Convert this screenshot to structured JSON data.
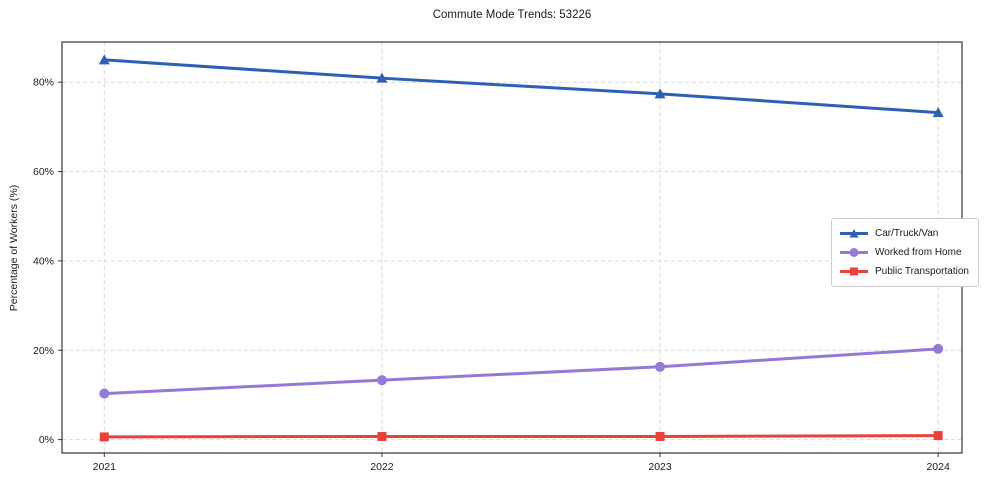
{
  "chart_data": {
    "type": "line",
    "title": "Commute Mode Trends: 53226",
    "xlabel": "",
    "ylabel": "Percentage of Workers (%)",
    "categories": [
      "2021",
      "2022",
      "2023",
      "2024"
    ],
    "series": [
      {
        "name": "Car/Truck/Van",
        "color": "#2d5fb4",
        "marker": "triangle",
        "values": [
          85.0,
          80.9,
          77.4,
          73.2
        ]
      },
      {
        "name": "Worked from Home",
        "color": "#9678d7",
        "marker": "circle",
        "values": [
          10.3,
          13.3,
          16.3,
          20.3
        ]
      },
      {
        "name": "Public Transportation",
        "color": "#e8413c",
        "marker": "square",
        "values": [
          0.6,
          0.7,
          0.7,
          0.9
        ]
      }
    ],
    "yticks": {
      "values": [
        0,
        20,
        40,
        60,
        80
      ],
      "labels": [
        "0%",
        "20%",
        "40%",
        "60%",
        "80%"
      ]
    },
    "ylim": [
      -3,
      89
    ],
    "grid": "dashed-both-axes",
    "legend_position": "right-center",
    "colors": {
      "grid": "#d9d9d9",
      "axis_border": "#333333",
      "tick_text": "#1a1a1a",
      "background": "#ffffff"
    }
  }
}
